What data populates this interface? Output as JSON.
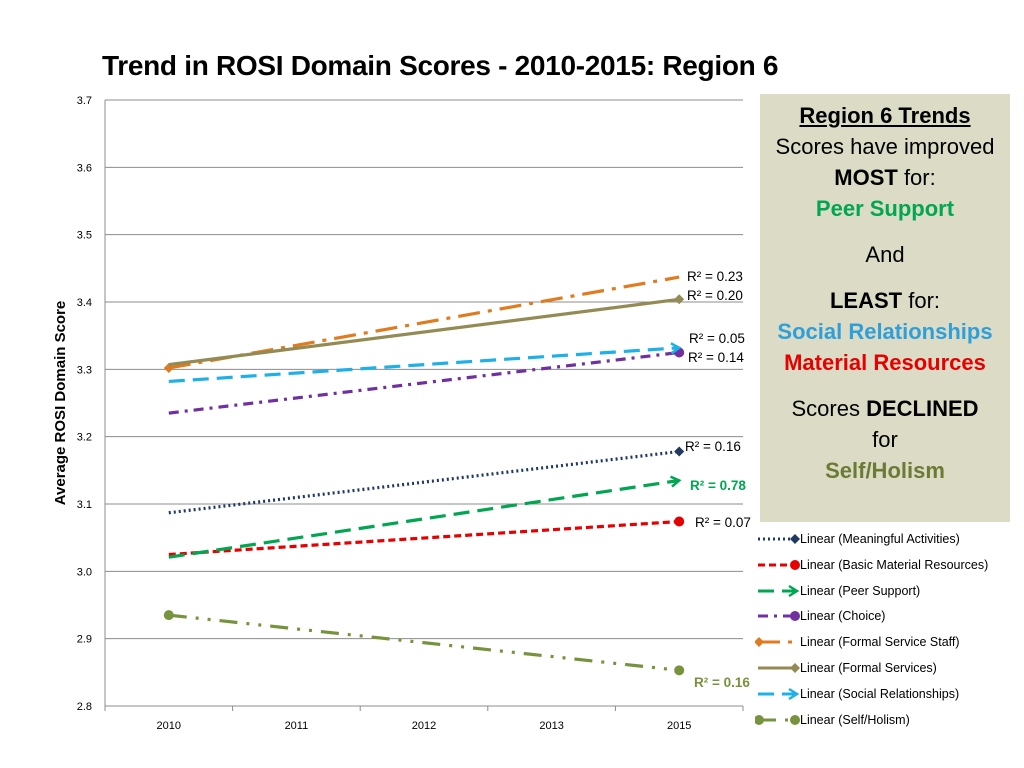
{
  "chart_data": {
    "type": "line",
    "title": "Trend in ROSI Domain Scores - 2010-2015: Region 6",
    "xlabel": "",
    "ylabel": "Average ROSI Domain Score",
    "categories": [
      "2010",
      "2011",
      "2012",
      "2013",
      "2015"
    ],
    "ylim": [
      2.8,
      3.7
    ],
    "yticks": [
      "2.8",
      "2.9",
      "3.0",
      "3.1",
      "3.2",
      "3.3",
      "3.4",
      "3.5",
      "3.6",
      "3.7"
    ],
    "grid": true,
    "series": [
      {
        "name": "Linear (Meaningful Activities)",
        "start": 3.087,
        "end": 3.178,
        "color": "#1f3864",
        "dash": "dot",
        "marker": "diamond",
        "r2": "R² = 0.16",
        "r2_color": "#000000",
        "r2_bold": false
      },
      {
        "name": "Linear (Basic Material Resources)",
        "start": 3.025,
        "end": 3.074,
        "color": "#e60000",
        "dash": "dash",
        "marker": "circle",
        "r2": "R² = 0.07",
        "r2_color": "#000000",
        "r2_bold": false
      },
      {
        "name": "Linear (Peer Support)",
        "start": 3.021,
        "end": 3.135,
        "color": "#00a651",
        "dash": "longdash",
        "marker": "arrow",
        "r2": "R² = 0.78",
        "r2_color": "#00a651",
        "r2_bold": true
      },
      {
        "name": "Linear (Choice)",
        "start": 3.235,
        "end": 3.325,
        "color": "#7030a0",
        "dash": "dashdot",
        "marker": "circle",
        "r2": "R² = 0.14",
        "r2_color": "#000000",
        "r2_bold": false
      },
      {
        "name": "Linear (Formal Service Staff)",
        "start": 3.302,
        "end": 3.437,
        "color": "#e07b20",
        "dash": "longdashdot",
        "marker": "diamond-start",
        "r2": "R² = 0.23",
        "r2_color": "#000000",
        "r2_bold": false
      },
      {
        "name": "Linear (Formal Services)",
        "start": 3.307,
        "end": 3.404,
        "color": "#948a54",
        "dash": "solid",
        "marker": "diamond",
        "r2": "R² = 0.20",
        "r2_color": "#000000",
        "r2_bold": false
      },
      {
        "name": "Linear (Social Relationships)",
        "start": 3.282,
        "end": 3.332,
        "color": "#1fb0e8",
        "dash": "longdash",
        "marker": "arrow",
        "r2": "R² = 0.05",
        "r2_color": "#000000",
        "r2_bold": false
      },
      {
        "name": "Linear (Self/Holism)",
        "start": 2.935,
        "end": 2.853,
        "color": "#77933c",
        "dash": "longdashdotdot",
        "marker": "circle-both",
        "r2": "R² = 0.16",
        "r2_color": "#77933c",
        "r2_bold": true
      }
    ]
  },
  "panel": {
    "heading": "Region 6 Trends",
    "line1": "Scores have improved",
    "most": "MOST",
    "for1": " for:",
    "peer": "Peer Support",
    "and": "And",
    "least": "LEAST",
    "for2": " for:",
    "social": "Social Relationships",
    "material": "Material Resources",
    "scores": "Scores ",
    "declined": "DECLINED",
    "for3": "for",
    "self": "Self/Holism"
  }
}
